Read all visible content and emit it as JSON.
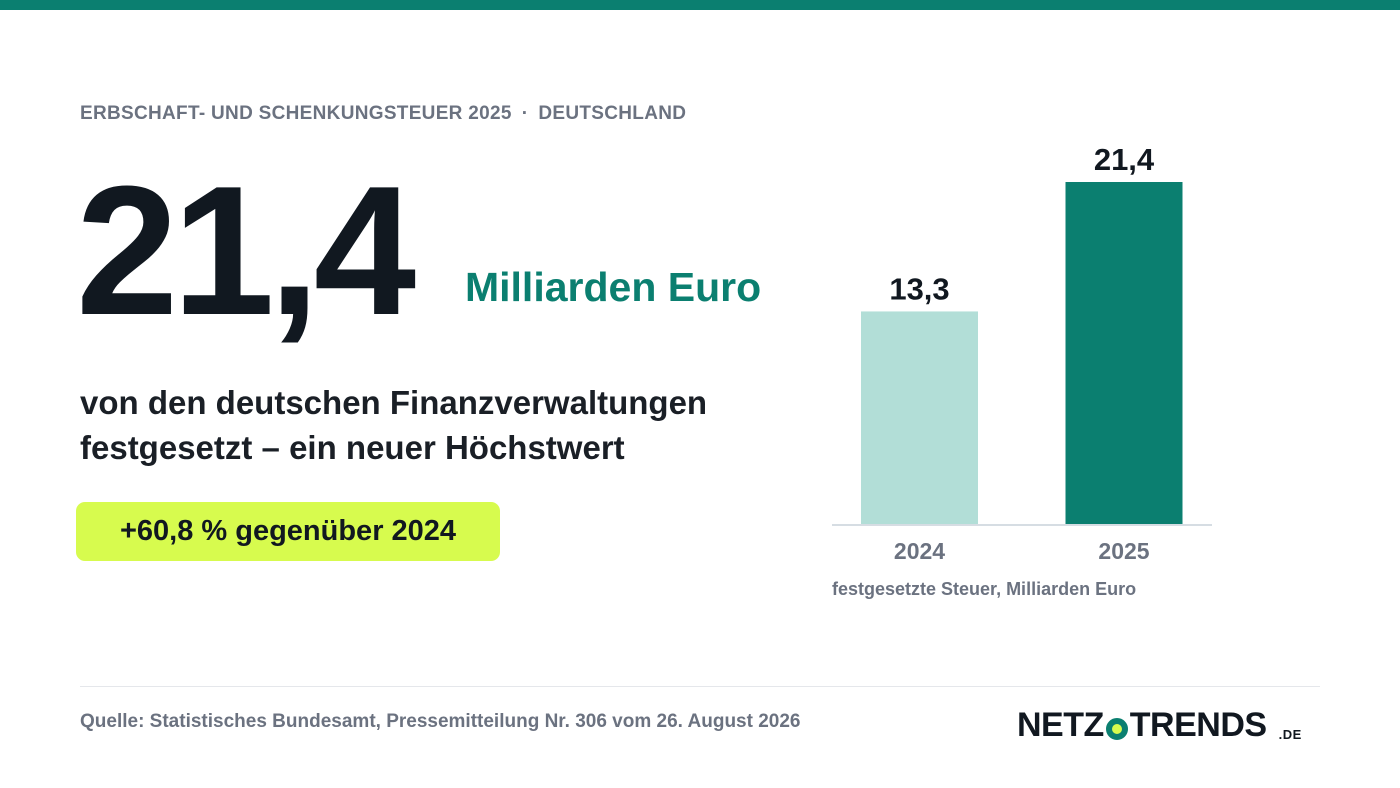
{
  "header": {
    "eyebrow_left": "ERBSCHAFT- UND SCHENKUNGSTEUER 2025",
    "eyebrow_sep": "·",
    "eyebrow_right": "DEUTSCHLAND"
  },
  "hero": {
    "value": "21,4",
    "unit": "Milliarden Euro",
    "description_line1": "von den deutschen Finanzverwaltungen",
    "description_line2": "festgesetzt – ein neuer Höchstwert",
    "badge": "+60,8 % gegenüber 2024"
  },
  "chart_data": {
    "type": "bar",
    "categories": [
      "2024",
      "2025"
    ],
    "values": [
      13.3,
      21.4
    ],
    "value_labels": [
      "13,3",
      "21,4"
    ],
    "caption": "festgesetzte Steuer, Milliarden Euro",
    "ylim": [
      0,
      21.4
    ],
    "grid": false,
    "colors": [
      "#b2ded7",
      "#0b7f70"
    ]
  },
  "footer": {
    "source": "Quelle: Statistisches Bundesamt, Pressemitteilung Nr. 306 vom 26. August 2026",
    "logo_left": "NETZ",
    "logo_right": "TRENDS",
    "logo_tld": ".DE"
  },
  "colors": {
    "accent": "#0b7f70",
    "highlight": "#d7fb4e",
    "text_dark": "#111820",
    "text_muted": "#6b7280"
  }
}
